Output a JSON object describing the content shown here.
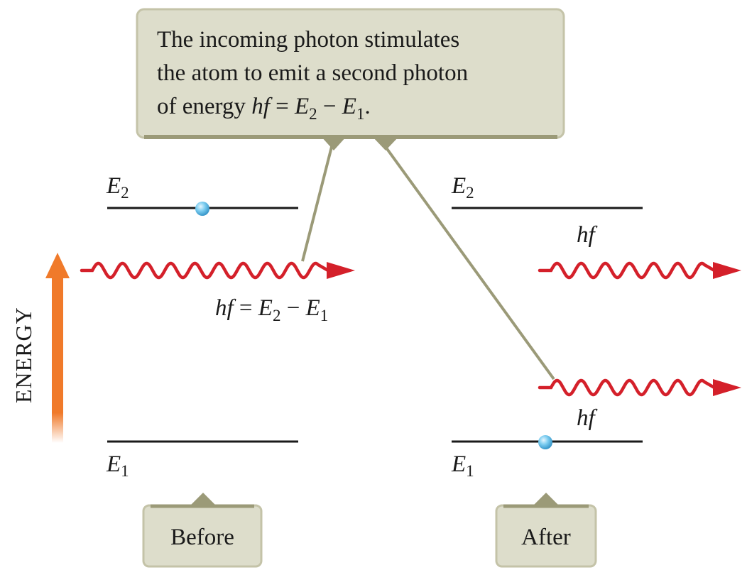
{
  "callout": {
    "line1": "The incoming photon stimulates",
    "line2": "the atom to emit a second photon",
    "line3_prefix": "of energy ",
    "hf": "hf",
    "eq": " = ",
    "e": "E",
    "sub2": "2",
    "minus": " − ",
    "sub1": "1",
    "period": "."
  },
  "axis": {
    "label": "ENERGY",
    "arrow_color": "#f07a2a"
  },
  "levels": {
    "symbol": "E",
    "upper_sub": "2",
    "lower_sub": "1"
  },
  "photon": {
    "hf": "hf",
    "eq": " = ",
    "e": "E",
    "sub2": "2",
    "minus": " − ",
    "sub1": "1",
    "color": "#d4202a"
  },
  "panels": {
    "before": "Before",
    "after": "After"
  },
  "colors": {
    "callout_fill": "#ddddcb",
    "callout_border": "#9b9a78",
    "electron": "#6ec3ea"
  }
}
